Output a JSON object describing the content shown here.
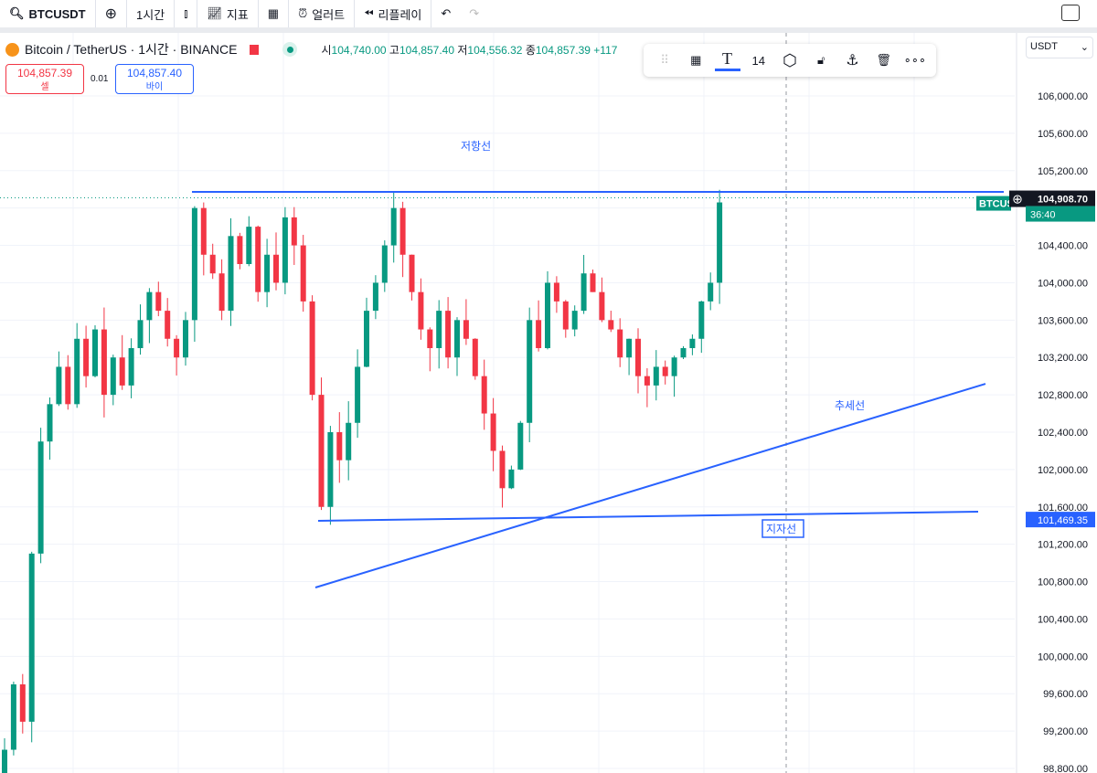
{
  "toolbar": {
    "symbol": "BTCUSDT",
    "interval": "1시간",
    "indicators": "지표",
    "alert": "얼러트",
    "replay": "리플레이"
  },
  "legend": {
    "title": "Bitcoin / TetherUS · 1시간 · BINANCE",
    "o_label": "시",
    "o": "104,740.00",
    "h_label": "고",
    "h": "104,857.40",
    "l_label": "저",
    "l": "104,556.32",
    "c_label": "종",
    "c": "104,857.39",
    "chg": "+117"
  },
  "sell": {
    "price": "104,857.39",
    "label": "셀"
  },
  "buy": {
    "price": "104,857.40",
    "label": "바이"
  },
  "spread": "0.01",
  "drawing_toolbar": {
    "font_size": "14"
  },
  "currency": "USDT",
  "price_axis": {
    "ticks": [
      "106,000.00",
      "105,600.00",
      "105,200.00",
      "104,400.00",
      "104,000.00",
      "103,600.00",
      "103,200.00",
      "102,800.00",
      "102,400.00",
      "102,000.00",
      "101,600.00",
      "101,200.00",
      "100,800.00",
      "100,400.00",
      "100,000.00",
      "99,600.00",
      "99,200.00",
      "98,800.00"
    ],
    "current_price": "104,908.70",
    "countdown": "36:40",
    "symbol_tag": "BTCUS",
    "support_label": "101,469.35"
  },
  "colors": {
    "up": "#089981",
    "down": "#f23645",
    "drawing": "#2962ff"
  },
  "annotations": {
    "resistance": "저항선",
    "trend": "추세선",
    "support": "지자선"
  },
  "chart_data": {
    "type": "candlestick",
    "ylim": [
      98800,
      106000
    ],
    "closes": [
      99000,
      99700,
      99300,
      101100,
      102300,
      102700,
      103100,
      102700,
      103400,
      103000,
      103500,
      102800,
      103200,
      102900,
      103300,
      103600,
      103900,
      103700,
      103400,
      103200,
      103600,
      104800,
      104300,
      104100,
      103700,
      104500,
      104200,
      104600,
      103900,
      104300,
      104000,
      104700,
      104400,
      103800,
      102800,
      101600,
      102400,
      102100,
      102500,
      103100,
      103700,
      104000,
      104400,
      104800,
      104300,
      103900,
      103500,
      103300,
      103700,
      103200,
      103600,
      103400,
      103000,
      102600,
      102200,
      101800,
      102000,
      102500,
      103600,
      103300,
      104000,
      103800,
      103500,
      103700,
      104100,
      103900,
      103600,
      103500,
      103200,
      103400,
      103000,
      102900,
      103100,
      103000,
      103200,
      103300,
      103400,
      103800,
      104000,
      104860
    ],
    "resistance_price": 104973,
    "support_line": [
      101451,
      101549
    ],
    "trend_line": [
      100737,
      102918
    ]
  }
}
